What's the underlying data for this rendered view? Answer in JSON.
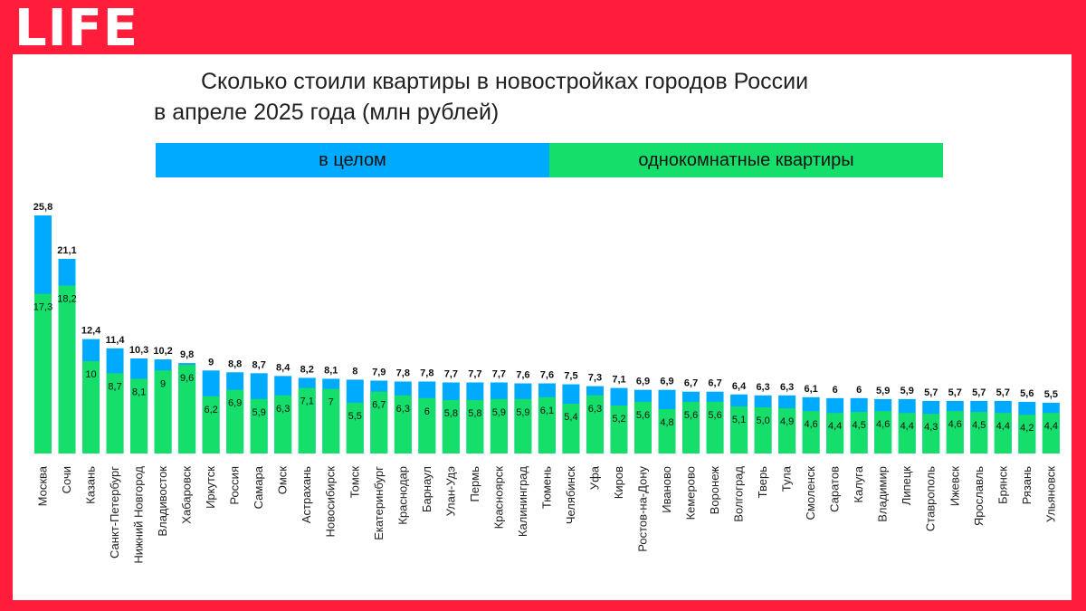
{
  "logo": "LIFE",
  "title_line1": "Сколько стоили квартиры в новостройках городов России",
  "title_line2": "в апреле 2025 года (млн рублей)",
  "colors": {
    "background": "#ff1d3b",
    "total": "#00aaff",
    "one_room": "#15de6a"
  },
  "chart_data": {
    "type": "bar",
    "title": "Сколько стоили квартиры в новостройках городов России в апреле 2025 года (млн рублей)",
    "xlabel": "",
    "ylabel": "",
    "ylim": [
      0,
      25.8
    ],
    "grid": false,
    "legend_position": "top",
    "categories": [
      "Москва",
      "Сочи",
      "Казань",
      "Санкт-Петербург",
      "Нижний Новгород",
      "Владивосток",
      "Хабаровск",
      "Иркутск",
      "Россия",
      "Самара",
      "Омск",
      "Астрахань",
      "Новосибирск",
      "Томск",
      "Екатеринбург",
      "Краснодар",
      "Барнаул",
      "Улан-Удэ",
      "Пермь",
      "Красноярск",
      "Калининград",
      "Тюмень",
      "Челябинск",
      "Уфа",
      "Киров",
      "Ростов-на-Дону",
      "Иваново",
      "Кемерово",
      "Воронеж",
      "Волгоград",
      "Тверь",
      "Тула",
      "Смоленск",
      "Саратов",
      "Калуга",
      "Владимир",
      "Липецк",
      "Ставрополь",
      "Ижевск",
      "Ярославль",
      "Брянск",
      "Рязань",
      "Ульяновск"
    ],
    "series": [
      {
        "name": "в целом",
        "values": [
          25.8,
          21.1,
          12.4,
          11.4,
          10.3,
          10.2,
          9.8,
          9,
          8.8,
          8.7,
          8.4,
          8.2,
          8.1,
          8,
          7.9,
          7.8,
          7.8,
          7.7,
          7.7,
          7.7,
          7.6,
          7.6,
          7.5,
          7.3,
          7.1,
          6.9,
          6.9,
          6.7,
          6.7,
          6.4,
          6.3,
          6.3,
          6.1,
          6,
          6,
          5.9,
          5.9,
          5.7,
          5.7,
          5.7,
          5.7,
          5.6,
          5.5
        ],
        "labels": [
          "25,8",
          "21,1",
          "12,4",
          "11,4",
          "10,3",
          "10,2",
          "9,8",
          "9",
          "8,8",
          "8,7",
          "8,4",
          "8,2",
          "8,1",
          "8",
          "7,9",
          "7,8",
          "7,8",
          "7,7",
          "7,7",
          "7,7",
          "7,6",
          "7,6",
          "7,5",
          "7,3",
          "7,1",
          "6,9",
          "6,9",
          "6,7",
          "6,7",
          "6,4",
          "6,3",
          "6,3",
          "6,1",
          "6",
          "6",
          "5,9",
          "5,9",
          "5,7",
          "5,7",
          "5,7",
          "5,7",
          "5,6",
          "5,5"
        ]
      },
      {
        "name": "однокомнатные квартиры",
        "values": [
          17.3,
          18.2,
          10,
          8.7,
          8.1,
          9,
          9.6,
          6.2,
          6.9,
          5.9,
          6.3,
          7.1,
          7,
          5.5,
          6.7,
          6.3,
          6,
          5.8,
          5.8,
          5.9,
          5.9,
          6.1,
          5.4,
          6.3,
          5.2,
          5.6,
          4.8,
          5.6,
          5.6,
          5.1,
          5.0,
          4.9,
          4.6,
          4.4,
          4.5,
          4.6,
          4.4,
          4.3,
          4.6,
          4.5,
          4.4,
          4.2,
          4.4
        ],
        "labels": [
          "17,3",
          "18,2",
          "10",
          "8,7",
          "8,1",
          "9",
          "9,6",
          "6,2",
          "6,9",
          "5,9",
          "6,3",
          "7,1",
          "7",
          "5,5",
          "6,7",
          "6,3",
          "6",
          "5,8",
          "5,8",
          "5,9",
          "5,9",
          "6,1",
          "5,4",
          "6,3",
          "5,2",
          "5,6",
          "4,8",
          "5,6",
          "5,6",
          "5,1",
          "5,0",
          "4,9",
          "4,6",
          "4,4",
          "4,5",
          "4,6",
          "4,4",
          "4,3",
          "4,6",
          "4,5",
          "4,4",
          "4,2",
          "4,4"
        ]
      }
    ]
  }
}
